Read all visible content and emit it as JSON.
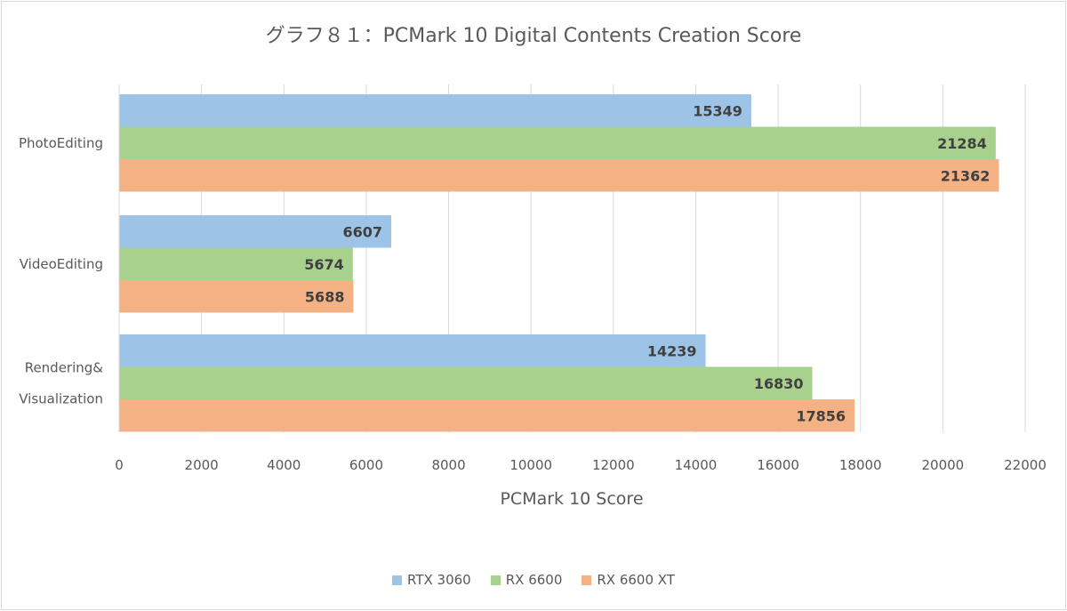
{
  "chart_data": {
    "type": "bar",
    "orientation": "horizontal",
    "title": "グラフ８１：PCMark 10 Digital Contents Creation Score",
    "xlabel": "PCMark 10 Score",
    "ylabel": "",
    "xlim": [
      0,
      22000
    ],
    "xticks": [
      0,
      2000,
      4000,
      6000,
      8000,
      10000,
      12000,
      14000,
      16000,
      18000,
      20000,
      22000
    ],
    "grid": true,
    "legend_position": "bottom",
    "categories": [
      {
        "lines": [
          "PhotoEditing"
        ]
      },
      {
        "lines": [
          "VideoEditing"
        ]
      },
      {
        "lines": [
          "Rendering&",
          "Visualization"
        ]
      }
    ],
    "series": [
      {
        "name": "RTX 3060",
        "color": "#9dc3e6",
        "values": [
          15349,
          6607,
          14239
        ]
      },
      {
        "name": "RX 6600",
        "color": "#a9d18e",
        "values": [
          21284,
          5674,
          16830
        ]
      },
      {
        "name": "RX 6600 XT",
        "color": "#f4b183",
        "values": [
          21362,
          5688,
          17856
        ]
      }
    ]
  }
}
